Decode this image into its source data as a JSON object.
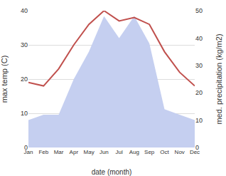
{
  "chart_data": {
    "type": "line",
    "categories": [
      "Jan",
      "Feb",
      "Mar",
      "Apr",
      "May",
      "Jun",
      "Jul",
      "Aug",
      "Sep",
      "Oct",
      "Nov",
      "Dec"
    ],
    "series": [
      {
        "type": "area",
        "axis": "y2",
        "color": "#c5cff0",
        "values": [
          10,
          12,
          12,
          25,
          35,
          48,
          40,
          48,
          38,
          14,
          12,
          10
        ]
      },
      {
        "type": "line",
        "color": "#c0504d",
        "values": [
          19,
          18,
          23,
          30,
          36,
          40,
          37,
          38,
          36,
          28,
          22,
          18
        ]
      }
    ],
    "xlabel": "date (month)",
    "ylabel": "max temp (C)",
    "y2label": "med. precipitation (kg/m2)",
    "ylim": [
      0,
      40
    ],
    "yticks": [
      0,
      10,
      20,
      30,
      40
    ],
    "y2lim": [
      0,
      50
    ],
    "y2ticks": [
      0,
      10,
      20,
      30,
      40,
      50
    ],
    "grid": true
  }
}
